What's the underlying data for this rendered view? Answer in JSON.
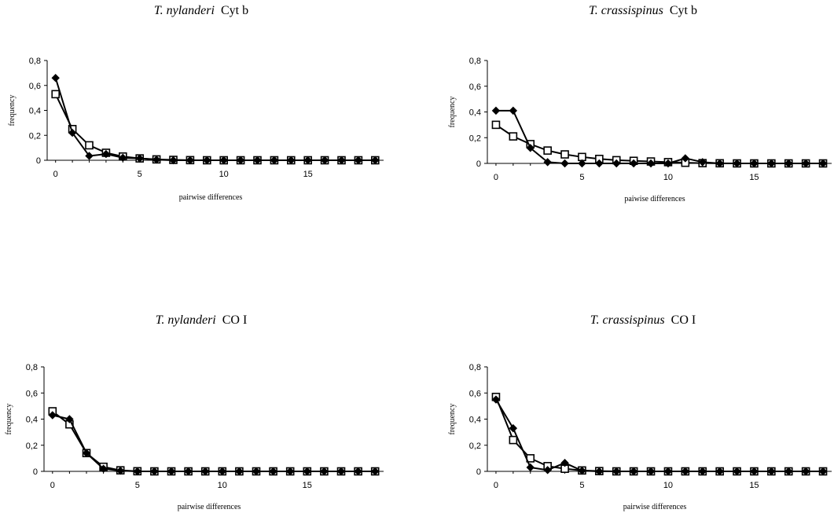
{
  "chart_data": [
    {
      "type": "line",
      "title": {
        "species": "T. nylanderi",
        "marker": "Cyt b"
      },
      "xlabel": "pairwise differences",
      "ylabel": "frequency",
      "ylim": [
        0,
        0.8
      ],
      "xlim": [
        -0.5,
        19.5
      ],
      "yticks": [
        "0",
        "0,2",
        "0,4",
        "0,6",
        "0,8"
      ],
      "xticks": [
        "0",
        "5",
        "10",
        "15"
      ],
      "x": [
        0,
        1,
        2,
        3,
        4,
        5,
        6,
        7,
        8,
        9,
        10,
        11,
        12,
        13,
        14,
        15,
        16,
        17,
        18,
        19
      ],
      "series": [
        {
          "marker": "diamond-filled",
          "values": [
            0.66,
            0.22,
            0.035,
            0.05,
            0.02,
            0.015,
            0.005,
            0,
            0,
            0,
            0,
            0,
            0,
            0,
            0,
            0,
            0,
            0,
            0,
            0
          ]
        },
        {
          "marker": "square-open",
          "values": [
            0.53,
            0.25,
            0.12,
            0.06,
            0.03,
            0.015,
            0.007,
            0.003,
            0.001,
            0,
            0,
            0,
            0,
            0,
            0,
            0,
            0,
            0,
            0,
            0
          ]
        }
      ]
    },
    {
      "type": "line",
      "title": {
        "species": "T. crassispinus",
        "marker": "Cyt b"
      },
      "xlabel": "paiwise differences",
      "ylabel": "frequency",
      "ylim": [
        0,
        0.8
      ],
      "xlim": [
        -0.5,
        19.5
      ],
      "yticks": [
        "0",
        "0,2",
        "0,4",
        "0,6",
        "0,8"
      ],
      "xticks": [
        "0",
        "5",
        "10",
        "15"
      ],
      "x": [
        0,
        1,
        2,
        3,
        4,
        5,
        6,
        7,
        8,
        9,
        10,
        11,
        12,
        13,
        14,
        15,
        16,
        17,
        18,
        19
      ],
      "series": [
        {
          "marker": "diamond-filled",
          "values": [
            0.41,
            0.41,
            0.12,
            0.01,
            0,
            0,
            0,
            0,
            0,
            0,
            0,
            0.04,
            0.01,
            0,
            0,
            0,
            0,
            0,
            0,
            0
          ]
        },
        {
          "marker": "square-open",
          "values": [
            0.3,
            0.21,
            0.15,
            0.1,
            0.07,
            0.05,
            0.035,
            0.025,
            0.02,
            0.015,
            0.01,
            0.005,
            0.002,
            0.001,
            0,
            0,
            0,
            0,
            0,
            0
          ]
        }
      ]
    },
    {
      "type": "line",
      "title": {
        "species": "T. nylanderi",
        "marker": "CO I"
      },
      "xlabel": "pairwise differences",
      "ylabel": "frequency",
      "ylim": [
        0,
        0.8
      ],
      "xlim": [
        -0.5,
        19.5
      ],
      "yticks": [
        "0",
        "0,2",
        "0,4",
        "0,6",
        "0,8"
      ],
      "xticks": [
        "0",
        "5",
        "10",
        "15"
      ],
      "x": [
        0,
        1,
        2,
        3,
        4,
        5,
        6,
        7,
        8,
        9,
        10,
        11,
        12,
        13,
        14,
        15,
        16,
        17,
        18,
        19
      ],
      "series": [
        {
          "marker": "diamond-filled",
          "values": [
            0.43,
            0.4,
            0.14,
            0.02,
            0.005,
            0,
            0,
            0,
            0,
            0,
            0,
            0,
            0,
            0,
            0,
            0,
            0,
            0,
            0,
            0
          ]
        },
        {
          "marker": "square-open",
          "values": [
            0.46,
            0.36,
            0.14,
            0.035,
            0.008,
            0.001,
            0,
            0,
            0,
            0,
            0,
            0,
            0,
            0,
            0,
            0,
            0,
            0,
            0,
            0
          ]
        }
      ]
    },
    {
      "type": "line",
      "title": {
        "species": "T. crassispinus",
        "marker": "CO I"
      },
      "xlabel": "pairwise differences",
      "ylabel": "frequency",
      "ylim": [
        0,
        0.8
      ],
      "xlim": [
        -0.5,
        19.5
      ],
      "yticks": [
        "0",
        "0,2",
        "0,4",
        "0,6",
        "0,8"
      ],
      "xticks": [
        "0",
        "5",
        "10",
        "15"
      ],
      "x": [
        0,
        1,
        2,
        3,
        4,
        5,
        6,
        7,
        8,
        9,
        10,
        11,
        12,
        13,
        14,
        15,
        16,
        17,
        18,
        19
      ],
      "series": [
        {
          "marker": "diamond-filled",
          "values": [
            0.55,
            0.33,
            0.03,
            0.01,
            0.065,
            0.005,
            0,
            0,
            0,
            0,
            0,
            0,
            0,
            0,
            0,
            0,
            0,
            0,
            0,
            0
          ]
        },
        {
          "marker": "square-open",
          "values": [
            0.57,
            0.24,
            0.1,
            0.04,
            0.02,
            0.007,
            0.002,
            0,
            0,
            0,
            0,
            0,
            0,
            0,
            0,
            0,
            0,
            0,
            0,
            0
          ]
        }
      ]
    }
  ]
}
